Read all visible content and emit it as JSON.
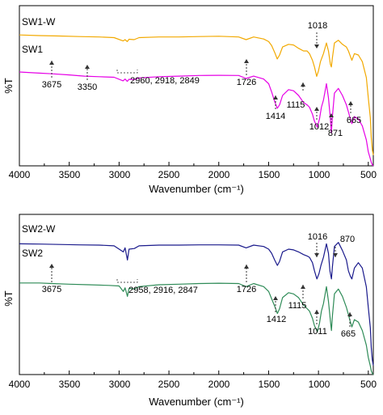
{
  "chart_data": [
    {
      "type": "line",
      "xlabel": "Wavenumber (cm⁻¹)",
      "ylabel": "%T",
      "xlim": [
        4000,
        450
      ],
      "x_reversed": true,
      "ylim": [
        0,
        1
      ],
      "x_ticks": [
        "4000",
        "3500",
        "3000",
        "2500",
        "2000",
        "1500",
        "1000",
        "500"
      ],
      "grid": false,
      "series": [
        {
          "name": "SW1-W",
          "color": "#f2a900",
          "x": [
            4000,
            3800,
            3600,
            3400,
            3200,
            3050,
            2960,
            2940,
            2918,
            2900,
            2849,
            2800,
            2600,
            2400,
            2200,
            2000,
            1800,
            1726,
            1650,
            1550,
            1500,
            1470,
            1440,
            1414,
            1390,
            1360,
            1300,
            1250,
            1200,
            1150,
            1115,
            1090,
            1060,
            1040,
            1018,
            1000,
            980,
            950,
            920,
            900,
            880,
            871,
            860,
            840,
            800,
            760,
            720,
            700,
            680,
            665,
            640,
            600,
            560,
            520,
            500,
            480,
            470,
            460,
            450
          ],
          "y": [
            0.92,
            0.915,
            0.912,
            0.908,
            0.905,
            0.9,
            0.875,
            0.885,
            0.87,
            0.888,
            0.885,
            0.9,
            0.905,
            0.905,
            0.908,
            0.91,
            0.905,
            0.885,
            0.905,
            0.89,
            0.87,
            0.84,
            0.79,
            0.74,
            0.77,
            0.83,
            0.85,
            0.845,
            0.82,
            0.8,
            0.8,
            0.78,
            0.73,
            0.68,
            0.61,
            0.65,
            0.72,
            0.78,
            0.86,
            0.8,
            0.7,
            0.68,
            0.75,
            0.86,
            0.88,
            0.85,
            0.83,
            0.8,
            0.76,
            0.73,
            0.78,
            0.77,
            0.72,
            0.6,
            0.45,
            0.3,
            0.15,
            0.06,
            0.02
          ]
        },
        {
          "name": "SW1",
          "color": "#e600e6",
          "x": [
            4000,
            3800,
            3675,
            3500,
            3350,
            3200,
            3050,
            2960,
            2940,
            2918,
            2900,
            2849,
            2800,
            2600,
            2400,
            2200,
            2000,
            1800,
            1726,
            1650,
            1550,
            1500,
            1470,
            1440,
            1414,
            1390,
            1360,
            1300,
            1250,
            1200,
            1150,
            1115,
            1090,
            1060,
            1040,
            1012,
            990,
            970,
            950,
            920,
            900,
            880,
            871,
            860,
            840,
            800,
            760,
            720,
            700,
            680,
            665,
            640,
            600,
            560,
            520,
            500,
            480,
            470,
            460,
            450
          ],
          "y": [
            0.8,
            0.79,
            0.785,
            0.775,
            0.765,
            0.76,
            0.755,
            0.725,
            0.74,
            0.72,
            0.738,
            0.735,
            0.75,
            0.76,
            0.765,
            0.77,
            0.772,
            0.77,
            0.745,
            0.765,
            0.74,
            0.7,
            0.63,
            0.55,
            0.49,
            0.52,
            0.6,
            0.65,
            0.64,
            0.6,
            0.54,
            0.52,
            0.5,
            0.44,
            0.38,
            0.33,
            0.4,
            0.5,
            0.56,
            0.7,
            0.58,
            0.4,
            0.28,
            0.42,
            0.62,
            0.66,
            0.6,
            0.52,
            0.46,
            0.4,
            0.36,
            0.42,
            0.4,
            0.34,
            0.22,
            0.12,
            0.06,
            0.03,
            0.01,
            0.0
          ]
        }
      ],
      "annotations": [
        {
          "text": "3675",
          "x": 3675
        },
        {
          "text": "3350",
          "x": 3350
        },
        {
          "text": "2960, 2918, 2849",
          "x": 2905
        },
        {
          "text": "1726",
          "x": 1726
        },
        {
          "text": "1414",
          "x": 1414
        },
        {
          "text": "1115",
          "x": 1115
        },
        {
          "text": "1018",
          "x": 1018
        },
        {
          "text": "1012",
          "x": 1012
        },
        {
          "text": "871",
          "x": 871
        },
        {
          "text": "665",
          "x": 665
        }
      ]
    },
    {
      "type": "line",
      "xlabel": "Wavenumber (cm⁻¹)",
      "ylabel": "%T",
      "xlim": [
        4000,
        450
      ],
      "x_reversed": true,
      "ylim": [
        0,
        1
      ],
      "x_ticks": [
        "4000",
        "3500",
        "3000",
        "2500",
        "2000",
        "1500",
        "1000",
        "500"
      ],
      "grid": false,
      "series": [
        {
          "name": "SW2-W",
          "color": "#1a1a8c",
          "x": [
            4000,
            3800,
            3600,
            3400,
            3200,
            3050,
            2958,
            2940,
            2916,
            2900,
            2847,
            2800,
            2600,
            2400,
            2200,
            2000,
            1800,
            1726,
            1650,
            1550,
            1500,
            1470,
            1440,
            1412,
            1390,
            1360,
            1300,
            1250,
            1200,
            1150,
            1115,
            1090,
            1060,
            1040,
            1016,
            995,
            975,
            950,
            920,
            900,
            885,
            870,
            860,
            840,
            800,
            760,
            720,
            700,
            680,
            665,
            640,
            600,
            560,
            520,
            500,
            480,
            470,
            460,
            450
          ],
          "y": [
            0.92,
            0.918,
            0.915,
            0.912,
            0.91,
            0.905,
            0.86,
            0.89,
            0.8,
            0.88,
            0.885,
            0.905,
            0.91,
            0.91,
            0.912,
            0.912,
            0.91,
            0.89,
            0.91,
            0.9,
            0.88,
            0.85,
            0.8,
            0.76,
            0.79,
            0.86,
            0.88,
            0.875,
            0.86,
            0.84,
            0.83,
            0.82,
            0.78,
            0.72,
            0.66,
            0.7,
            0.76,
            0.82,
            0.92,
            0.85,
            0.72,
            0.66,
            0.75,
            0.9,
            0.93,
            0.87,
            0.8,
            0.72,
            0.68,
            0.66,
            0.74,
            0.78,
            0.74,
            0.6,
            0.45,
            0.3,
            0.15,
            0.06,
            0.02
          ]
        },
        {
          "name": "SW2",
          "color": "#2e8b57",
          "x": [
            4000,
            3800,
            3675,
            3500,
            3300,
            3100,
            3000,
            2958,
            2940,
            2916,
            2900,
            2847,
            2800,
            2600,
            2400,
            2200,
            2000,
            1800,
            1726,
            1650,
            1550,
            1500,
            1470,
            1440,
            1412,
            1390,
            1360,
            1300,
            1250,
            1200,
            1150,
            1115,
            1090,
            1060,
            1040,
            1011,
            990,
            970,
            950,
            920,
            900,
            880,
            870,
            860,
            840,
            800,
            760,
            720,
            700,
            680,
            665,
            640,
            600,
            560,
            520,
            500,
            480,
            470,
            460,
            450
          ],
          "y": [
            0.75,
            0.75,
            0.745,
            0.74,
            0.735,
            0.73,
            0.725,
            0.68,
            0.71,
            0.64,
            0.705,
            0.7,
            0.72,
            0.735,
            0.74,
            0.745,
            0.748,
            0.745,
            0.72,
            0.745,
            0.72,
            0.68,
            0.62,
            0.56,
            0.5,
            0.54,
            0.63,
            0.67,
            0.66,
            0.63,
            0.57,
            0.54,
            0.52,
            0.46,
            0.4,
            0.35,
            0.42,
            0.52,
            0.58,
            0.72,
            0.6,
            0.44,
            0.36,
            0.48,
            0.66,
            0.7,
            0.64,
            0.55,
            0.49,
            0.43,
            0.39,
            0.45,
            0.43,
            0.36,
            0.24,
            0.14,
            0.07,
            0.03,
            0.01,
            0.0
          ]
        }
      ],
      "annotations": [
        {
          "text": "3675",
          "x": 3675
        },
        {
          "text": "2958, 2916, 2847",
          "x": 2905
        },
        {
          "text": "1726",
          "x": 1726
        },
        {
          "text": "1412",
          "x": 1412
        },
        {
          "text": "1115",
          "x": 1115
        },
        {
          "text": "1016",
          "x": 1016
        },
        {
          "text": "1011",
          "x": 1011
        },
        {
          "text": "870",
          "x": 870
        },
        {
          "text": "665",
          "x": 665
        }
      ]
    }
  ]
}
